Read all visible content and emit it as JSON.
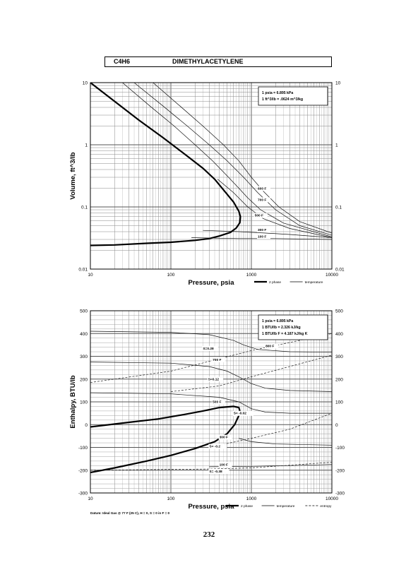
{
  "header": {
    "formula": "C4H6",
    "name": "DIMETHYLACETYLENE"
  },
  "page_number": "232",
  "chart_data": [
    {
      "id": "volume",
      "type": "line",
      "xscale": "log",
      "yscale": "log",
      "xlim": [
        10,
        10000
      ],
      "ylim": [
        0.01,
        10
      ],
      "xlabel": "Pressure,  psia",
      "ylabel": "Volume, ft^3/lb",
      "xticks": [
        {
          "v": 10,
          "label": "10"
        },
        {
          "v": 100,
          "label": "100"
        },
        {
          "v": 1000,
          "label": "1000"
        },
        {
          "v": 10000,
          "label": "10000"
        }
      ],
      "yticks": [
        {
          "v": 10,
          "label": "10"
        },
        {
          "v": 1,
          "label": "1"
        },
        {
          "v": 0.1,
          "label": "0.1"
        },
        {
          "v": 0.01,
          "label": "0.01"
        }
      ],
      "info_lines": [
        "1 psia  =  6.895 kPa",
        "1 ft^3/lb  =  .0624 m^3/kg"
      ],
      "legend": [
        {
          "label": "2 phase",
          "style": "thick"
        },
        {
          "label": "temperature",
          "style": "thin"
        }
      ],
      "series": [
        {
          "kind": "dome",
          "points": [
            [
              10,
              10
            ],
            [
              20,
              5
            ],
            [
              40,
              2.5
            ],
            [
              80,
              1.3
            ],
            [
              150,
              0.7
            ],
            [
              250,
              0.42
            ],
            [
              350,
              0.28
            ],
            [
              480,
              0.17
            ],
            [
              600,
              0.12
            ],
            [
              700,
              0.085
            ],
            [
              730,
              0.07
            ],
            [
              720,
              0.056
            ],
            [
              650,
              0.046
            ],
            [
              550,
              0.039
            ],
            [
              400,
              0.034
            ],
            [
              300,
              0.031
            ],
            [
              200,
              0.029
            ],
            [
              100,
              0.027
            ],
            [
              50,
              0.026
            ],
            [
              20,
              0.0245
            ],
            [
              10,
              0.024
            ]
          ]
        },
        {
          "kind": "isotherm",
          "points": [
            [
              35,
              10
            ],
            [
              80,
              4.2
            ],
            [
              160,
              2
            ],
            [
              300,
              1
            ],
            [
              500,
              0.55
            ],
            [
              800,
              0.3
            ],
            [
              1200,
              0.17
            ],
            [
              2000,
              0.09
            ],
            [
              4000,
              0.05
            ],
            [
              10000,
              0.035
            ]
          ]
        },
        {
          "kind": "isotherm",
          "points": [
            [
              60,
              10
            ],
            [
              130,
              4.2
            ],
            [
              250,
              2
            ],
            [
              450,
              1
            ],
            [
              700,
              0.55
            ],
            [
              1000,
              0.3
            ],
            [
              1400,
              0.18
            ],
            [
              2200,
              0.1
            ],
            [
              4000,
              0.058
            ],
            [
              10000,
              0.038
            ]
          ]
        },
        {
          "kind": "isotherm",
          "points": [
            [
              25,
              10
            ],
            [
              55,
              4.2
            ],
            [
              110,
              2
            ],
            [
              200,
              1
            ],
            [
              330,
              0.55
            ],
            [
              520,
              0.3
            ],
            [
              700,
              0.2
            ],
            [
              900,
              0.14
            ],
            [
              1300,
              0.09
            ],
            [
              2500,
              0.055
            ],
            [
              10000,
              0.033
            ]
          ]
        },
        {
          "kind": "isotherm",
          "points": [
            [
              380,
              0.28
            ],
            [
              600,
              0.17
            ],
            [
              900,
              0.1
            ],
            [
              1400,
              0.065
            ],
            [
              3000,
              0.045
            ],
            [
              10000,
              0.032
            ]
          ]
        },
        {
          "kind": "isotherm",
          "points": [
            [
              250,
              0.042
            ],
            [
              700,
              0.04
            ],
            [
              1500,
              0.038
            ],
            [
              3000,
              0.036
            ],
            [
              10000,
              0.032
            ]
          ]
        },
        {
          "kind": "isotherm",
          "points": [
            [
              180,
              0.032
            ],
            [
              700,
              0.031
            ],
            [
              2000,
              0.031
            ],
            [
              10000,
              0.03
            ]
          ]
        }
      ],
      "annotations": [
        {
          "x": 1200,
          "y": 0.19,
          "text": "600 F"
        },
        {
          "x": 1200,
          "y": 0.125,
          "text": "700 F"
        },
        {
          "x": 1100,
          "y": 0.07,
          "text": "500 F"
        },
        {
          "x": 1200,
          "y": 0.041,
          "text": "300 F"
        },
        {
          "x": 1200,
          "y": 0.032,
          "text": "100 F"
        }
      ]
    },
    {
      "id": "enthalpy",
      "type": "line",
      "xscale": "log",
      "yscale": "linear",
      "xlim": [
        10,
        10000
      ],
      "ylim": [
        -300,
        500
      ],
      "xlabel": "Pressure,  psia",
      "ylabel": "Enthalpy, BTU/lb",
      "xticks": [
        {
          "v": 10,
          "label": "10"
        },
        {
          "v": 100,
          "label": "100"
        },
        {
          "v": 1000,
          "label": "1000"
        },
        {
          "v": 10000,
          "label": "10000"
        }
      ],
      "yticks": [
        {
          "v": 500,
          "label": "500"
        },
        {
          "v": 400,
          "label": "400"
        },
        {
          "v": 300,
          "label": "300"
        },
        {
          "v": 200,
          "label": "200"
        },
        {
          "v": 100,
          "label": "100"
        },
        {
          "v": 0,
          "label": "0"
        },
        {
          "v": -100,
          "label": "-100"
        },
        {
          "v": -200,
          "label": "-200"
        },
        {
          "v": -300,
          "label": "-300"
        }
      ],
      "info_lines": [
        "1 psia  =  6.895 kPa",
        "1 BTU/lb  =  2.326 kJ/kg",
        "1 BTU/lb F  =  4.187 kJ/kg K"
      ],
      "legend": [
        {
          "label": "2 phase",
          "style": "thick"
        },
        {
          "label": "temperature",
          "style": "thin"
        },
        {
          "label": "entropy",
          "style": "dashed"
        }
      ],
      "datum": "Datum: Ideal Gas @ 77 F (25 C),  H = 0,  S = 0 in F = 0",
      "series": [
        {
          "kind": "dome",
          "points": [
            [
              10,
              -210
            ],
            [
              20,
              -190
            ],
            [
              50,
              -160
            ],
            [
              100,
              -135
            ],
            [
              200,
              -105
            ],
            [
              350,
              -75
            ],
            [
              500,
              -40
            ],
            [
              620,
              0
            ],
            [
              700,
              40
            ],
            [
              720,
              60
            ],
            [
              700,
              75
            ],
            [
              600,
              80
            ],
            [
              400,
              75
            ],
            [
              250,
              60
            ],
            [
              150,
              45
            ],
            [
              70,
              25
            ],
            [
              30,
              10
            ],
            [
              10,
              -10
            ]
          ]
        },
        {
          "kind": "isotherm",
          "points": [
            [
              10,
              410
            ],
            [
              100,
              405
            ],
            [
              300,
              395
            ],
            [
              600,
              370
            ],
            [
              800,
              350
            ],
            [
              1200,
              330
            ],
            [
              3000,
              320
            ],
            [
              10000,
              318
            ]
          ]
        },
        {
          "kind": "isotherm",
          "points": [
            [
              10,
              275
            ],
            [
              100,
              270
            ],
            [
              300,
              255
            ],
            [
              500,
              235
            ],
            [
              700,
              210
            ],
            [
              1000,
              180
            ],
            [
              1500,
              160
            ],
            [
              3000,
              150
            ],
            [
              10000,
              145
            ]
          ]
        },
        {
          "kind": "isotherm",
          "points": [
            [
              10,
              140
            ],
            [
              100,
              135
            ],
            [
              400,
              120
            ],
            [
              700,
              100
            ],
            [
              1000,
              70
            ],
            [
              1500,
              55
            ],
            [
              3000,
              50
            ],
            [
              10000,
              50
            ]
          ]
        },
        {
          "kind": "isotherm",
          "points": [
            [
              700,
              -60
            ],
            [
              1000,
              -75
            ],
            [
              2000,
              -85
            ],
            [
              10000,
              -90
            ]
          ]
        },
        {
          "kind": "isotherm",
          "points": [
            [
              300,
              -185
            ],
            [
              1000,
              -183
            ],
            [
              3000,
              -180
            ],
            [
              10000,
              -175
            ]
          ]
        },
        {
          "kind": "entropy",
          "points": [
            [
              10,
              185
            ],
            [
              100,
              235
            ],
            [
              1000,
              325
            ],
            [
              10000,
              400
            ]
          ]
        },
        {
          "kind": "entropy",
          "points": [
            [
              100,
              145
            ],
            [
              400,
              170
            ],
            [
              1000,
              210
            ],
            [
              10000,
              305
            ]
          ]
        },
        {
          "kind": "entropy",
          "points": [
            [
              300,
              -100
            ],
            [
              1000,
              -60
            ],
            [
              3000,
              -20
            ],
            [
              10000,
              50
            ]
          ]
        },
        {
          "kind": "entropy",
          "points": [
            [
              10,
              -200
            ],
            [
              300,
              -195
            ],
            [
              1000,
              -190
            ],
            [
              10000,
              -165
            ]
          ]
        }
      ],
      "annotations": [
        {
          "x": 250,
          "y": 330,
          "text": "S=0.28"
        },
        {
          "x": 330,
          "y": 280,
          "text": "700 F"
        },
        {
          "x": 290,
          "y": 195,
          "text": "S=0.12"
        },
        {
          "x": 1500,
          "y": 340,
          "text": "800 F"
        },
        {
          "x": 330,
          "y": 95,
          "text": "500 F"
        },
        {
          "x": 600,
          "y": 45,
          "text": "S= -0.02"
        },
        {
          "x": 400,
          "y": -60,
          "text": "300 F"
        },
        {
          "x": 300,
          "y": -100,
          "text": "S= -0.2"
        },
        {
          "x": 400,
          "y": -180,
          "text": "100 F"
        },
        {
          "x": 300,
          "y": -210,
          "text": "S= -0.38"
        }
      ]
    }
  ]
}
